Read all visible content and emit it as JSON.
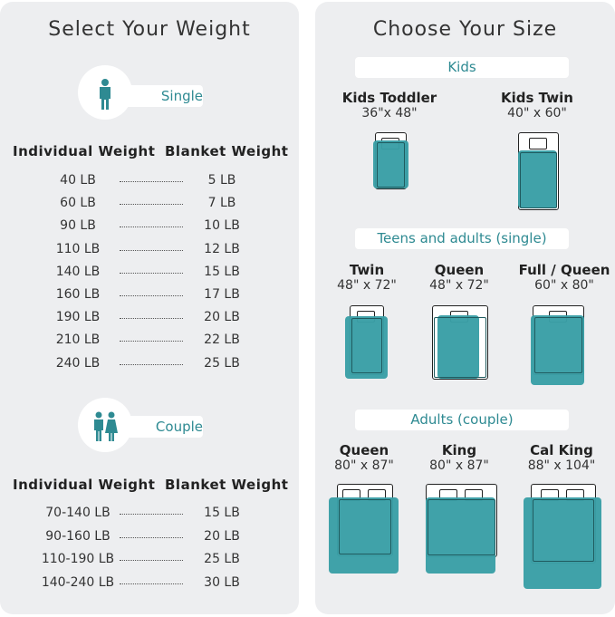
{
  "weight": {
    "title": "Select Your Weight",
    "single": {
      "label": "Single",
      "icon": "person-icon",
      "headers": [
        "Individual Weight",
        "Blanket Weight"
      ],
      "rows": [
        [
          "40 LB",
          "5 LB"
        ],
        [
          "60 LB",
          "7 LB"
        ],
        [
          "90 LB",
          "10 LB"
        ],
        [
          "110 LB",
          "12 LB"
        ],
        [
          "140 LB",
          "15 LB"
        ],
        [
          "160 LB",
          "17 LB"
        ],
        [
          "190 LB",
          "20 LB"
        ],
        [
          "210 LB",
          "22 LB"
        ],
        [
          "240 LB",
          "25 LB"
        ]
      ]
    },
    "couple": {
      "label": "Couple",
      "icon": "couple-icon",
      "headers": [
        "Individual Weight",
        "Blanket Weight"
      ],
      "rows": [
        [
          "70-140 LB",
          "15 LB"
        ],
        [
          "90-160 LB",
          "20 LB"
        ],
        [
          "110-190 LB",
          "25 LB"
        ],
        [
          "140-240 LB",
          "30 LB"
        ]
      ]
    }
  },
  "size": {
    "title": "Choose Your Size",
    "groups": [
      {
        "label": "Kids",
        "items": [
          {
            "name": "Kids Toddler",
            "dims": "36\"x 48\""
          },
          {
            "name": "Kids Twin",
            "dims": "40\" x 60\""
          }
        ]
      },
      {
        "label": "Teens and adults (single)",
        "items": [
          {
            "name": "Twin",
            "dims": "48\" x 72\""
          },
          {
            "name": "Queen",
            "dims": "48\" x 72\""
          },
          {
            "name": "Full / Queen",
            "dims": "60\" x 80\""
          }
        ]
      },
      {
        "label": "Adults (couple)",
        "items": [
          {
            "name": "Queen",
            "dims": "80\" x 87\""
          },
          {
            "name": "King",
            "dims": "80\" x 87\""
          },
          {
            "name": "Cal King",
            "dims": "88\" x 104\""
          }
        ]
      }
    ]
  },
  "colors": {
    "accent": "#3a9fa6",
    "panel": "#edeef0"
  }
}
